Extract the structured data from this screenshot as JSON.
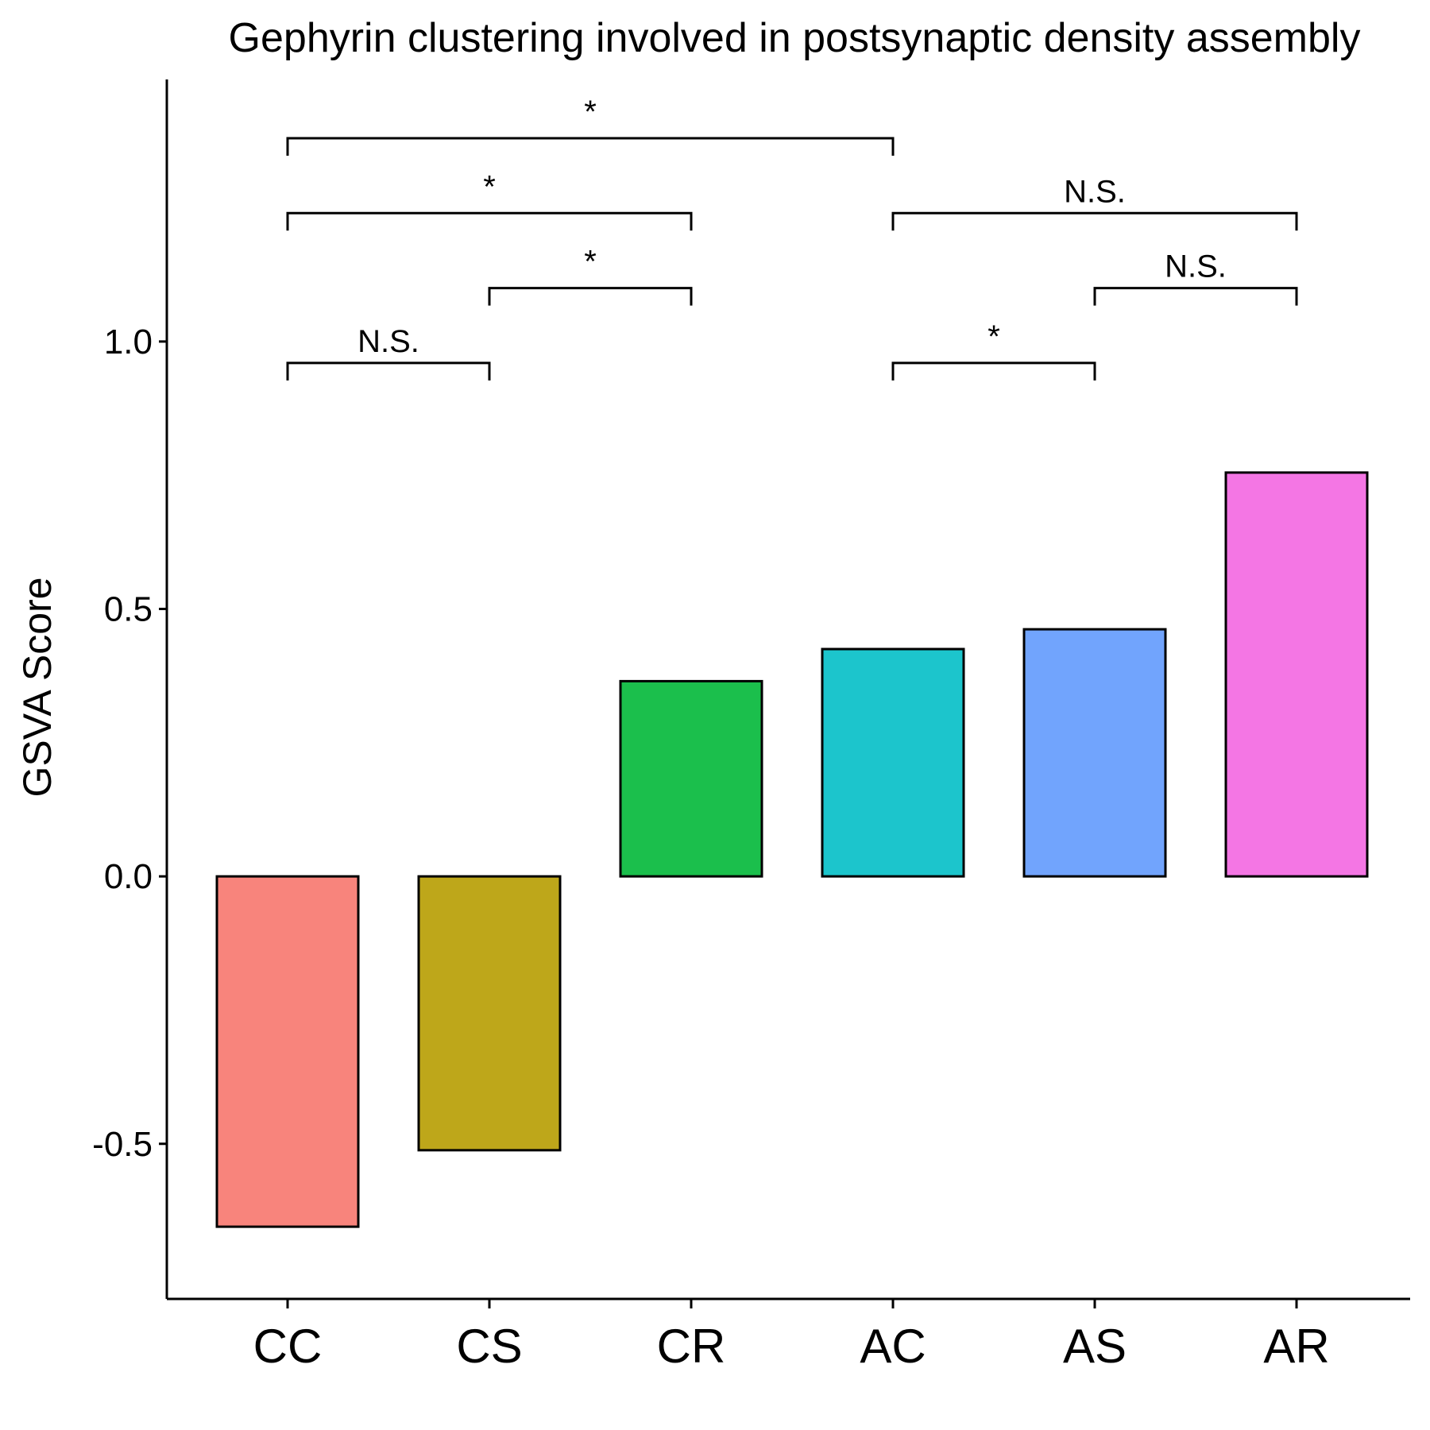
{
  "chart_data": {
    "type": "bar",
    "title": "Gephyrin clustering involved in postsynaptic density assembly",
    "xlabel": "",
    "ylabel": "GSVA Score",
    "categories": [
      "CC",
      "CS",
      "CR",
      "AC",
      "AS",
      "AR"
    ],
    "values": [
      -0.655,
      -0.512,
      0.365,
      0.425,
      0.462,
      0.755
    ],
    "colors": [
      "#F8847C",
      "#BEA71A",
      "#1BBF4C",
      "#1CC5CC",
      "#71A4FD",
      "#F476E4"
    ],
    "ylim": [
      -0.79,
      1.49
    ],
    "yticks": [
      -0.5,
      0.0,
      0.5,
      1.0
    ],
    "ytick_labels": [
      "-0.5",
      "0.0",
      "0.5",
      "1.0"
    ],
    "grid": false,
    "legend": "none",
    "significance": [
      {
        "from": "CC",
        "to": "CS",
        "y": 0.96,
        "label": "N.S."
      },
      {
        "from": "CS",
        "to": "CR",
        "y": 1.1,
        "label": "*"
      },
      {
        "from": "CC",
        "to": "CR",
        "y": 1.24,
        "label": "*"
      },
      {
        "from": "CC",
        "to": "AC",
        "y": 1.38,
        "label": "*"
      },
      {
        "from": "AC",
        "to": "AS",
        "y": 0.96,
        "label": "*"
      },
      {
        "from": "AS",
        "to": "AR",
        "y": 1.1,
        "label": "N.S."
      },
      {
        "from": "AC",
        "to": "AR",
        "y": 1.24,
        "label": "N.S."
      }
    ]
  }
}
